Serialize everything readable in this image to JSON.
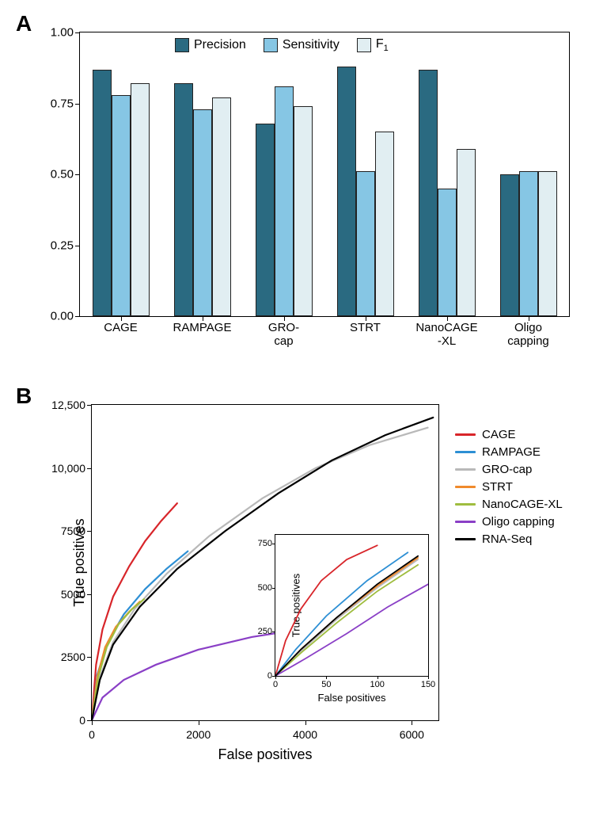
{
  "panelA": {
    "label": "A",
    "type": "bar",
    "ylim": [
      0,
      1.0
    ],
    "yticks": [
      0.0,
      0.25,
      0.5,
      0.75,
      1.0
    ],
    "ytick_labels": [
      "0.00",
      "0.25",
      "0.50",
      "0.75",
      "1.00"
    ],
    "categories": [
      "CAGE",
      "RAMPAGE",
      "GRO-cap",
      "STRT",
      "NanoCAGE\n-XL",
      "Oligo\ncapping"
    ],
    "series": [
      {
        "name": "Precision",
        "color": "#2a6a81"
      },
      {
        "name": "Sensitivity",
        "color": "#86c6e4"
      },
      {
        "name": "F1",
        "color": "#e1eef2",
        "label_html": "F<span class='sub'>1</span>"
      }
    ],
    "values": {
      "Precision": [
        0.87,
        0.82,
        0.68,
        0.88,
        0.87,
        0.5
      ],
      "Sensitivity": [
        0.78,
        0.73,
        0.81,
        0.51,
        0.45,
        0.51
      ],
      "F1": [
        0.82,
        0.77,
        0.74,
        0.65,
        0.59,
        0.51
      ]
    },
    "bar_border": "#1a1a1a",
    "background": "#ffffff",
    "axis_fontsize": 15,
    "legend_fontsize": 16
  },
  "panelB": {
    "label": "B",
    "type": "line",
    "xlabel": "False positives",
    "ylabel": "True positives",
    "xlim": [
      0,
      6500
    ],
    "ylim": [
      0,
      12500
    ],
    "xticks": [
      0,
      2000,
      4000,
      6000
    ],
    "yticks": [
      0,
      2500,
      5000,
      7500,
      10000,
      12500
    ],
    "ytick_labels": [
      "0",
      "2500",
      "5000",
      "7500",
      "10,000",
      "12,500"
    ],
    "line_width": 2.2,
    "series": [
      {
        "name": "CAGE",
        "color": "#d8252a",
        "points": [
          [
            0,
            0
          ],
          [
            80,
            2200
          ],
          [
            200,
            3600
          ],
          [
            400,
            4900
          ],
          [
            700,
            6100
          ],
          [
            1000,
            7100
          ],
          [
            1300,
            7900
          ],
          [
            1600,
            8600
          ]
        ]
      },
      {
        "name": "RAMPAGE",
        "color": "#2d8fd4",
        "points": [
          [
            0,
            0
          ],
          [
            100,
            1800
          ],
          [
            300,
            3100
          ],
          [
            600,
            4200
          ],
          [
            1000,
            5200
          ],
          [
            1400,
            6000
          ],
          [
            1800,
            6700
          ]
        ]
      },
      {
        "name": "GRO-cap",
        "color": "#b9b9b9",
        "points": [
          [
            0,
            0
          ],
          [
            150,
            1700
          ],
          [
            400,
            3100
          ],
          [
            800,
            4400
          ],
          [
            1400,
            5800
          ],
          [
            2200,
            7300
          ],
          [
            3200,
            8800
          ],
          [
            4200,
            10000
          ],
          [
            5200,
            10900
          ],
          [
            6300,
            11600
          ]
        ]
      },
      {
        "name": "STRT",
        "color": "#f08a2c",
        "points": [
          [
            0,
            0
          ],
          [
            100,
            1700
          ],
          [
            250,
            2900
          ],
          [
            450,
            3700
          ],
          [
            700,
            4300
          ],
          [
            900,
            4700
          ]
        ]
      },
      {
        "name": "NanoCAGE-XL",
        "color": "#9fbd3f",
        "points": [
          [
            0,
            0
          ],
          [
            120,
            1700
          ],
          [
            280,
            2900
          ],
          [
            500,
            3800
          ],
          [
            750,
            4400
          ],
          [
            980,
            4800
          ]
        ]
      },
      {
        "name": "Oligo capping",
        "color": "#8a3fc6",
        "points": [
          [
            0,
            0
          ],
          [
            200,
            900
          ],
          [
            600,
            1600
          ],
          [
            1200,
            2200
          ],
          [
            2000,
            2800
          ],
          [
            3000,
            3300
          ],
          [
            4200,
            3700
          ],
          [
            5400,
            3900
          ]
        ]
      },
      {
        "name": "RNA-Seq",
        "color": "#000000",
        "points": [
          [
            0,
            0
          ],
          [
            150,
            1600
          ],
          [
            400,
            3000
          ],
          [
            900,
            4500
          ],
          [
            1600,
            6000
          ],
          [
            2500,
            7500
          ],
          [
            3500,
            9000
          ],
          [
            4500,
            10300
          ],
          [
            5500,
            11300
          ],
          [
            6400,
            12000
          ]
        ]
      }
    ],
    "inset": {
      "xlabel": "False positives",
      "ylabel": "True positives",
      "xlim": [
        0,
        150
      ],
      "ylim": [
        0,
        800
      ],
      "xticks": [
        0,
        50,
        100,
        150
      ],
      "yticks": [
        0,
        250,
        500,
        750
      ],
      "series": [
        {
          "name": "CAGE",
          "color": "#d8252a",
          "points": [
            [
              0,
              0
            ],
            [
              10,
              200
            ],
            [
              25,
              380
            ],
            [
              45,
              540
            ],
            [
              70,
              660
            ],
            [
              100,
              740
            ]
          ]
        },
        {
          "name": "RAMPAGE",
          "color": "#2d8fd4",
          "points": [
            [
              0,
              0
            ],
            [
              20,
              150
            ],
            [
              50,
              340
            ],
            [
              90,
              540
            ],
            [
              130,
              700
            ]
          ]
        },
        {
          "name": "GRO-cap",
          "color": "#b9b9b9",
          "points": [
            [
              0,
              0
            ],
            [
              25,
              140
            ],
            [
              60,
              320
            ],
            [
              100,
              500
            ],
            [
              140,
              660
            ]
          ]
        },
        {
          "name": "STRT",
          "color": "#f08a2c",
          "points": [
            [
              0,
              0
            ],
            [
              25,
              150
            ],
            [
              60,
              330
            ],
            [
              100,
              510
            ],
            [
              140,
              670
            ]
          ]
        },
        {
          "name": "NanoCAGE-XL",
          "color": "#9fbd3f",
          "points": [
            [
              0,
              0
            ],
            [
              25,
              130
            ],
            [
              60,
              300
            ],
            [
              100,
              480
            ],
            [
              140,
              630
            ]
          ]
        },
        {
          "name": "Oligo capping",
          "color": "#8a3fc6",
          "points": [
            [
              0,
              0
            ],
            [
              30,
              100
            ],
            [
              70,
              240
            ],
            [
              110,
              390
            ],
            [
              150,
              520
            ]
          ]
        },
        {
          "name": "RNA-Seq",
          "color": "#000000",
          "points": [
            [
              0,
              0
            ],
            [
              25,
              150
            ],
            [
              60,
              330
            ],
            [
              100,
              520
            ],
            [
              140,
              680
            ]
          ]
        }
      ]
    },
    "axis_fontsize": 14,
    "label_fontsize": 18,
    "legend_fontsize": 15
  }
}
